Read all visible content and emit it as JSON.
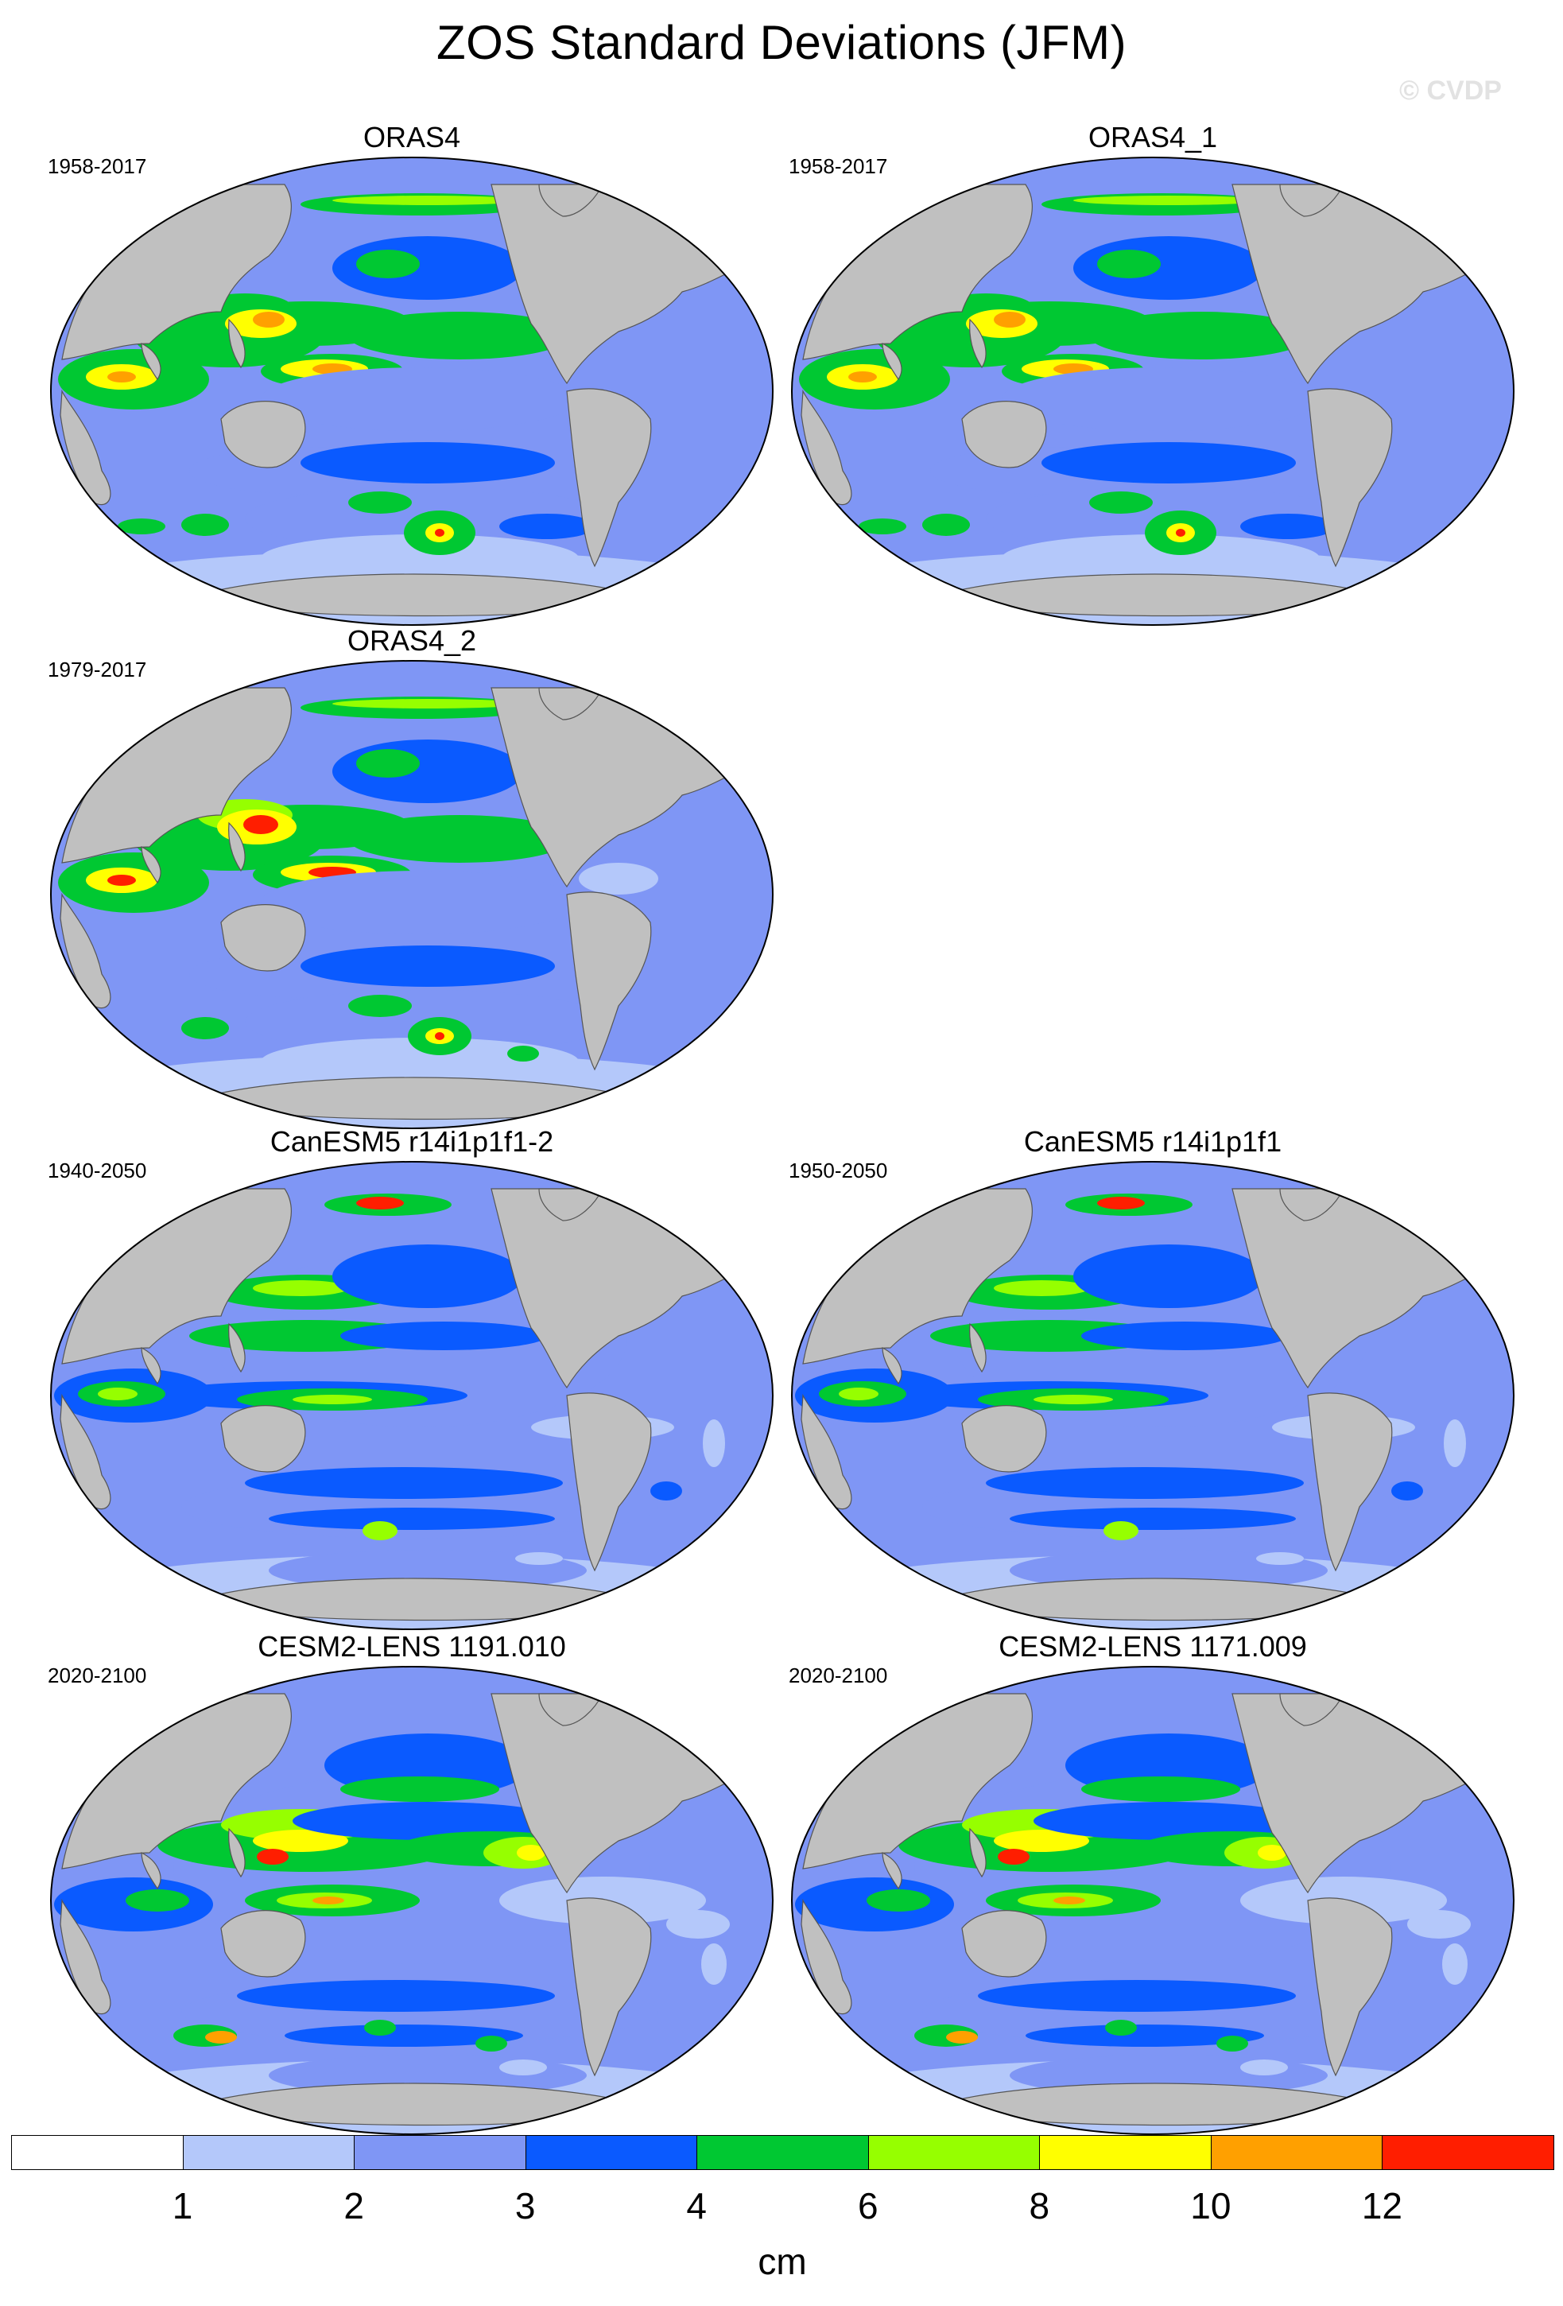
{
  "title": "ZOS Standard Deviations (JFM)",
  "watermark": "© CVDP",
  "panels": [
    {
      "title": "ORAS4",
      "period": "1958-2017",
      "pattern": "obs"
    },
    {
      "title": "ORAS4_1",
      "period": "1958-2017",
      "pattern": "obs"
    },
    {
      "title": "ORAS4_2",
      "period": "1979-2017",
      "pattern": "obs2"
    },
    {
      "title": "CanESM5 r14i1p1f1-2",
      "period": "1940-2050",
      "pattern": "canesm"
    },
    {
      "title": "CanESM5 r14i1p1f1",
      "period": "1950-2050",
      "pattern": "canesm"
    },
    {
      "title": "CESM2-LENS 1191.010",
      "period": "2020-2100",
      "pattern": "cesm"
    },
    {
      "title": "CESM2-LENS 1171.009",
      "period": "2020-2100",
      "pattern": "cesm"
    }
  ],
  "colorbar": {
    "unit": "cm",
    "labels": [
      "1",
      "2",
      "3",
      "4",
      "6",
      "8",
      "10",
      "12"
    ],
    "colors": [
      "#ffffff",
      "#b4c8fa",
      "#7f96f5",
      "#0a5aff",
      "#00c832",
      "#96ff00",
      "#ffff00",
      "#ffa000",
      "#ff1e00"
    ]
  },
  "land_color": "#c0c0c0"
}
